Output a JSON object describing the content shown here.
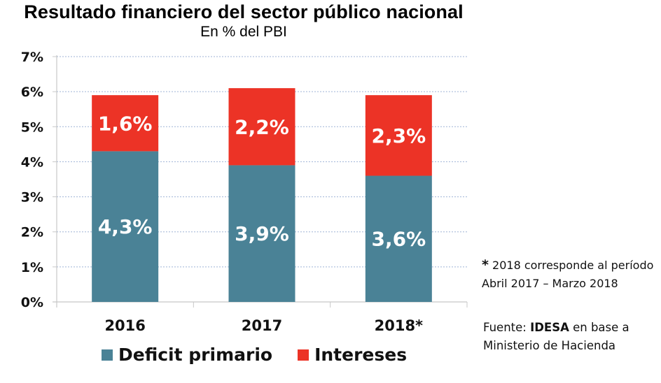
{
  "chart_data": {
    "type": "bar",
    "stacked": true,
    "title": "Resultado financiero del sector público nacional",
    "subtitle": "En % del PBI",
    "xlabel": "",
    "ylabel": "",
    "ylim": [
      0,
      7
    ],
    "yticks": [
      0,
      1,
      2,
      3,
      4,
      5,
      6,
      7
    ],
    "ytick_labels": [
      "0%",
      "1%",
      "2%",
      "3%",
      "4%",
      "5%",
      "6%",
      "7%"
    ],
    "grid": true,
    "categories": [
      "2016",
      "2017",
      "2018*"
    ],
    "series": [
      {
        "name": "Deficit primario",
        "color": "#4A8296",
        "values": [
          4.3,
          3.9,
          3.6
        ],
        "labels": [
          "4,3%",
          "3,9%",
          "3,6%"
        ]
      },
      {
        "name": "Intereses",
        "color": "#EC3326",
        "values": [
          1.6,
          2.2,
          2.3
        ],
        "labels": [
          "1,6%",
          "2,2%",
          "2,3%"
        ]
      }
    ],
    "legend": {
      "position": "bottom",
      "entries": [
        "Deficit primario",
        "Intereses"
      ]
    }
  },
  "note": {
    "star": "*",
    "text": " 2018 corresponde al período Abril 2017 – Marzo 2018"
  },
  "source": {
    "prefix": "Fuente: ",
    "org": "IDESA",
    "suffix": " en base a Ministerio de Hacienda"
  }
}
